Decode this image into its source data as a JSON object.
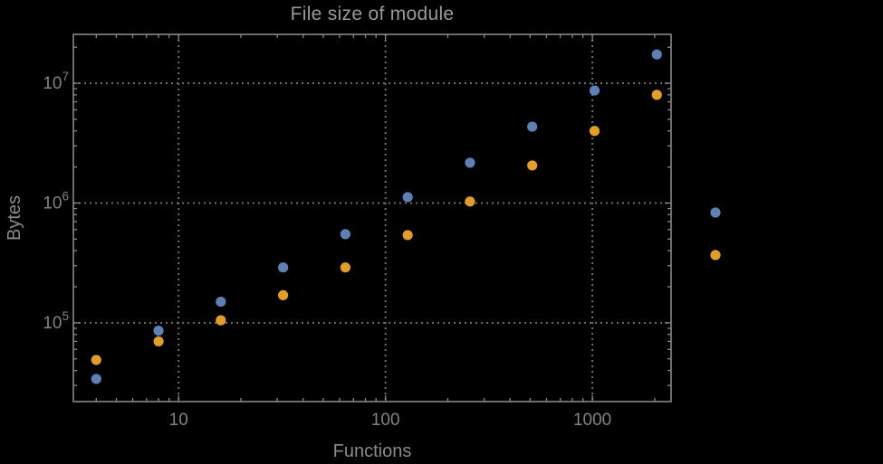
{
  "window": {
    "background_color": "#000000",
    "text_color": "#8a8a8a"
  },
  "chart_data": {
    "type": "scatter",
    "title": "File size of module",
    "xlabel": "Functions",
    "ylabel": "Bytes",
    "x_scale": "log",
    "y_scale": "log",
    "grid": "dotted",
    "xlim": [
      3.1,
      2400
    ],
    "ylim": [
      22000,
      25600000
    ],
    "x": [
      4,
      8,
      16,
      32,
      64,
      128,
      256,
      512,
      1024,
      2048
    ],
    "series": [
      {
        "name": "series-blue",
        "color": "#5e81b5",
        "values": [
          34000,
          86000,
          150000,
          290000,
          550000,
          1120000,
          2170000,
          4340000,
          8700000,
          17400000
        ]
      },
      {
        "name": "series-orange",
        "color": "#e39e28",
        "values": [
          49000,
          70000,
          105000,
          170000,
          290000,
          540000,
          1030000,
          2060000,
          4000000,
          8000000
        ]
      }
    ],
    "x_ticks": [
      10,
      100,
      1000
    ],
    "x_tick_labels": [
      "10",
      "100",
      "1000"
    ],
    "y_ticks": [
      100000,
      1000000,
      10000000
    ],
    "y_tick_labels": [
      {
        "mantissa": "10",
        "exponent": "5"
      },
      {
        "mantissa": "10",
        "exponent": "6"
      },
      {
        "mantissa": "10",
        "exponent": "7"
      }
    ],
    "legend": {
      "position": "right-center",
      "labels_visible": false,
      "entries": [
        {
          "label": "",
          "color": "#5e81b5"
        },
        {
          "label": "",
          "color": "#e39e28"
        }
      ]
    },
    "style": {
      "frame_color": "#878787",
      "gridline_color": "#6e6e6e",
      "tick_label_color": "#828282",
      "point_radius": 5.6
    }
  }
}
